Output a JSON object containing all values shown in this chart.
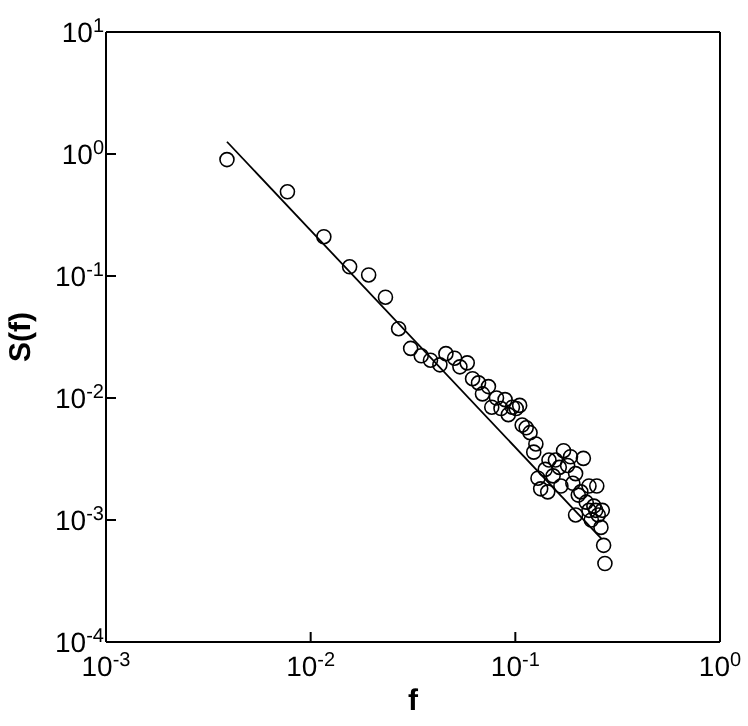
{
  "chart_data": {
    "type": "scatter",
    "xlabel": "f",
    "ylabel": "S(f)",
    "log": "xy",
    "marker": "circle",
    "xlim": [
      0.001,
      1
    ],
    "ylim": [
      0.0001,
      10
    ],
    "xticks": [
      {
        "value": 0.001,
        "label": "10$^{-3}$"
      },
      {
        "value": 0.01,
        "label": "10$^{-2}$"
      },
      {
        "value": 0.1,
        "label": "10$^{-1}$"
      },
      {
        "value": 1,
        "label": "10$^{0}$"
      }
    ],
    "yticks": [
      {
        "value": 0.0001,
        "label": "10$^{-4}$"
      },
      {
        "value": 0.001,
        "label": "10$^{-3}$"
      },
      {
        "value": 0.01,
        "label": "10$^{-2}$"
      },
      {
        "value": 0.1,
        "label": "10$^{-1}$"
      },
      {
        "value": 1,
        "label": "10$^{0}$"
      },
      {
        "value": 10,
        "label": "10$^{1}$"
      }
    ],
    "series": [
      {
        "color": "#000000",
        "x": [
          0.0039,
          0.0077,
          0.0116,
          0.0155,
          0.0192,
          0.0232,
          0.0269,
          0.0308,
          0.0347,
          0.0385,
          0.0428,
          0.0458,
          0.0505,
          0.0536,
          0.0582,
          0.0618,
          0.0661,
          0.0691,
          0.0739,
          0.0767,
          0.0809,
          0.0851,
          0.0891,
          0.0924,
          0.0968,
          0.101,
          0.105,
          0.108,
          0.113,
          0.118,
          0.126,
          0.123,
          0.129,
          0.133,
          0.14,
          0.146,
          0.144,
          0.153,
          0.157,
          0.164,
          0.172,
          0.167,
          0.18,
          0.186,
          0.191,
          0.197,
          0.203,
          0.197,
          0.209,
          0.215,
          0.222,
          0.229,
          0.229,
          0.235,
          0.242,
          0.25,
          0.254,
          0.262,
          0.266,
          0.27,
          0.274,
          0.247
        ],
        "values": [
          0.9,
          0.49,
          0.21,
          0.119,
          0.102,
          0.067,
          0.037,
          0.0255,
          0.0222,
          0.0204,
          0.0187,
          0.0231,
          0.0212,
          0.018,
          0.0194,
          0.0144,
          0.0133,
          0.0108,
          0.0124,
          0.0084,
          0.01,
          0.0082,
          0.0097,
          0.0073,
          0.0084,
          0.0082,
          0.0087,
          0.006,
          0.0057,
          0.0052,
          0.0042,
          0.0036,
          0.0022,
          0.0018,
          0.0026,
          0.0031,
          0.0017,
          0.0023,
          0.0031,
          0.0027,
          0.0037,
          0.0019,
          0.0028,
          0.0033,
          0.002,
          0.0024,
          0.0016,
          0.0011,
          0.0017,
          0.0032,
          0.0014,
          0.0019,
          0.0012,
          0.001,
          0.0013,
          0.0019,
          0.0011,
          0.00087,
          0.0012,
          0.00062,
          0.00044,
          0.0012
        ]
      },
      {
        "type": "line",
        "color": "#000000",
        "marker": "none",
        "x": [
          0.0039,
          0.264
        ],
        "values": [
          1.26,
          0.0007
        ]
      }
    ]
  }
}
